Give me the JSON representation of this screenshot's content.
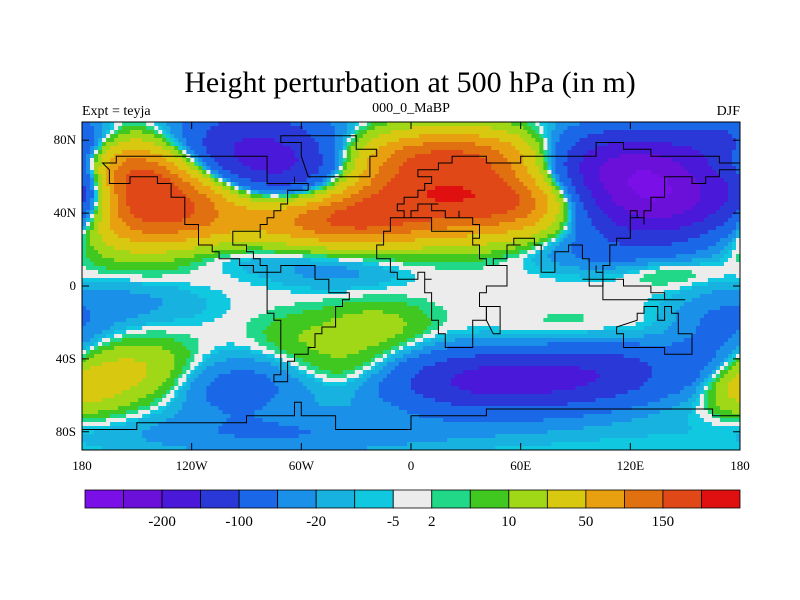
{
  "chart_data": {
    "type": "heatmap",
    "title": "Height perturbation at 500 hPa (in m)",
    "subtitle_left": "Expt = teyja",
    "subtitle_center": "000_0_MaBP",
    "subtitle_right": "DJF",
    "xlabel": "",
    "ylabel": "",
    "xlim": [
      -180,
      180
    ],
    "ylim": [
      -90,
      90
    ],
    "x_ticks": [
      {
        "value": -180,
        "label": "180"
      },
      {
        "value": -120,
        "label": "120W"
      },
      {
        "value": -60,
        "label": "60W"
      },
      {
        "value": 0,
        "label": "0"
      },
      {
        "value": 60,
        "label": "60E"
      },
      {
        "value": 120,
        "label": "120E"
      },
      {
        "value": 180,
        "label": "180"
      }
    ],
    "y_ticks": [
      {
        "value": 80,
        "label": "80N"
      },
      {
        "value": 40,
        "label": "40N"
      },
      {
        "value": 0,
        "label": "0"
      },
      {
        "value": -40,
        "label": "40S"
      },
      {
        "value": -80,
        "label": "80S"
      }
    ],
    "colorbar": {
      "colors": [
        "#7a0fe8",
        "#6a10d8",
        "#4a18d8",
        "#2a38d8",
        "#1a68e8",
        "#1a90e8",
        "#18b2e0",
        "#10c8e0",
        "#ececec",
        "#20d888",
        "#40c820",
        "#a0d818",
        "#d8c810",
        "#e8a010",
        "#e07010",
        "#e04818",
        "#e01010"
      ],
      "labels": [
        {
          "after_index": 1,
          "text": "-200"
        },
        {
          "after_index": 3,
          "text": "-100"
        },
        {
          "after_index": 5,
          "text": "-20"
        },
        {
          "after_index": 7,
          "text": "-5"
        },
        {
          "after_index": 8,
          "text": "2"
        },
        {
          "after_index": 10,
          "text": "10"
        },
        {
          "after_index": 12,
          "text": "50"
        },
        {
          "after_index": 14,
          "text": "150"
        }
      ]
    },
    "features": [
      {
        "lon": -145,
        "lat": 48,
        "amp": 240,
        "slon": 38,
        "slat": 18
      },
      {
        "lon": -165,
        "lat": 65,
        "amp": 90,
        "slon": 25,
        "slat": 12
      },
      {
        "lon": -88,
        "lat": 68,
        "amp": -170,
        "slon": 34,
        "slat": 17
      },
      {
        "lon": -50,
        "lat": 58,
        "amp": -70,
        "slon": 25,
        "slat": 12
      },
      {
        "lon": -40,
        "lat": 35,
        "amp": 100,
        "slon": 32,
        "slat": 9
      },
      {
        "lon": 0,
        "lat": 50,
        "amp": 175,
        "slon": 52,
        "slat": 14
      },
      {
        "lon": 25,
        "lat": 72,
        "amp": 120,
        "slon": 42,
        "slat": 10
      },
      {
        "lon": 60,
        "lat": 45,
        "amp": 95,
        "slon": 28,
        "slat": 12
      },
      {
        "lon": 140,
        "lat": 50,
        "amp": -260,
        "slon": 40,
        "slat": 17
      },
      {
        "lon": 108,
        "lat": 70,
        "amp": -100,
        "slon": 32,
        "slat": 12
      },
      {
        "lon": -178,
        "lat": 55,
        "amp": -110,
        "slon": 14,
        "slat": 14
      },
      {
        "lon": 172,
        "lat": 80,
        "amp": -60,
        "slon": 18,
        "slat": 9
      },
      {
        "lon": -110,
        "lat": 18,
        "amp": -25,
        "slon": 40,
        "slat": 8
      },
      {
        "lon": -40,
        "lat": 8,
        "amp": -15,
        "slon": 25,
        "slat": 7
      },
      {
        "lon": 8,
        "lat": 28,
        "amp": 9,
        "slon": 38,
        "slat": 6
      },
      {
        "lon": 140,
        "lat": 8,
        "amp": 14,
        "slon": 18,
        "slat": 6
      },
      {
        "lon": 95,
        "lat": 18,
        "amp": -15,
        "slon": 25,
        "slat": 6
      },
      {
        "lon": -20,
        "lat": -22,
        "amp": 22,
        "slon": 20,
        "slat": 9
      },
      {
        "lon": -62,
        "lat": -28,
        "amp": 12,
        "slon": 18,
        "slat": 9
      },
      {
        "lon": 100,
        "lat": -28,
        "amp": 12,
        "slon": 32,
        "slat": 9
      },
      {
        "lon": 170,
        "lat": -20,
        "amp": -25,
        "slon": 20,
        "slat": 12
      },
      {
        "lon": -150,
        "lat": -8,
        "amp": -15,
        "slon": 28,
        "slat": 10
      },
      {
        "lon": -155,
        "lat": -48,
        "amp": 50,
        "slon": 28,
        "slat": 12
      },
      {
        "lon": -100,
        "lat": -55,
        "amp": -40,
        "slon": 30,
        "slat": 12
      },
      {
        "lon": -30,
        "lat": -45,
        "amp": 25,
        "slon": 25,
        "slat": 10
      },
      {
        "lon": 50,
        "lat": -52,
        "amp": -140,
        "slon": 42,
        "slat": 11
      },
      {
        "lon": 110,
        "lat": -45,
        "amp": -55,
        "slon": 25,
        "slat": 12
      },
      {
        "lon": 165,
        "lat": -45,
        "amp": -40,
        "slon": 18,
        "slat": 12
      },
      {
        "lon": 178,
        "lat": -55,
        "amp": 45,
        "slon": 14,
        "slat": 10
      },
      {
        "lon": 20,
        "lat": -78,
        "amp": -8,
        "slon": 90,
        "slat": 8
      },
      {
        "lon": -80,
        "lat": -82,
        "amp": -20,
        "slon": 60,
        "slat": 8
      }
    ],
    "continents": [
      [
        [
          -168,
          66
        ],
        [
          -160,
          71
        ],
        [
          -140,
          70
        ],
        [
          -125,
          71
        ],
        [
          -110,
          73
        ],
        [
          -95,
          72
        ],
        [
          -85,
          70
        ],
        [
          -80,
          64
        ],
        [
          -78,
          58
        ],
        [
          -65,
          60
        ],
        [
          -62,
          56
        ],
        [
          -55,
          52
        ],
        [
          -66,
          44
        ],
        [
          -70,
          42
        ],
        [
          -76,
          38
        ],
        [
          -80,
          32
        ],
        [
          -81,
          25
        ],
        [
          -84,
          30
        ],
        [
          -90,
          29
        ],
        [
          -97,
          27
        ],
        [
          -97,
          22
        ],
        [
          -90,
          20
        ],
        [
          -88,
          16
        ],
        [
          -83,
          10
        ],
        [
          -78,
          8
        ],
        [
          -80,
          8
        ],
        [
          -85,
          12
        ],
        [
          -92,
          15
        ],
        [
          -105,
          20
        ],
        [
          -110,
          24
        ],
        [
          -115,
          30
        ],
        [
          -118,
          34
        ],
        [
          -124,
          40
        ],
        [
          -124,
          48
        ],
        [
          -130,
          55
        ],
        [
          -140,
          60
        ],
        [
          -152,
          58
        ],
        [
          -160,
          58
        ],
        [
          -165,
          62
        ]
      ],
      [
        [
          -78,
          8
        ],
        [
          -72,
          12
        ],
        [
          -62,
          10
        ],
        [
          -52,
          5
        ],
        [
          -45,
          -2
        ],
        [
          -35,
          -6
        ],
        [
          -37,
          -12
        ],
        [
          -40,
          -22
        ],
        [
          -48,
          -26
        ],
        [
          -53,
          -34
        ],
        [
          -58,
          -38
        ],
        [
          -65,
          -42
        ],
        [
          -68,
          -52
        ],
        [
          -72,
          -54
        ],
        [
          -75,
          -48
        ],
        [
          -73,
          -38
        ],
        [
          -71,
          -25
        ],
        [
          -70,
          -18
        ],
        [
          -76,
          -14
        ],
        [
          -80,
          -6
        ],
        [
          -80,
          0
        ]
      ],
      [
        [
          -55,
          60
        ],
        [
          -45,
          60
        ],
        [
          -22,
          70
        ],
        [
          -20,
          76
        ],
        [
          -30,
          82
        ],
        [
          -55,
          82
        ],
        [
          -70,
          78
        ],
        [
          -60,
          70
        ]
      ],
      [
        [
          -10,
          36
        ],
        [
          -5,
          43
        ],
        [
          -9,
          44
        ],
        [
          -2,
          48
        ],
        [
          -5,
          48
        ],
        [
          2,
          51
        ],
        [
          5,
          53
        ],
        [
          8,
          57
        ],
        [
          12,
          56
        ],
        [
          10,
          59
        ],
        [
          5,
          62
        ],
        [
          10,
          64
        ],
        [
          15,
          69
        ],
        [
          22,
          71
        ],
        [
          30,
          70
        ],
        [
          40,
          67
        ],
        [
          45,
          68
        ],
        [
          60,
          70
        ],
        [
          70,
          73
        ],
        [
          80,
          73
        ],
        [
          100,
          78
        ],
        [
          115,
          74
        ],
        [
          130,
          72
        ],
        [
          140,
          72
        ],
        [
          160,
          70
        ],
        [
          170,
          69
        ],
        [
          180,
          66
        ],
        [
          180,
          63
        ],
        [
          170,
          60
        ],
        [
          163,
          60
        ],
        [
          160,
          55
        ],
        [
          155,
          59
        ],
        [
          143,
          59
        ],
        [
          140,
          54
        ],
        [
          137,
          54
        ],
        [
          140,
          48
        ],
        [
          132,
          43
        ],
        [
          129,
          35
        ],
        [
          126,
          37
        ],
        [
          125,
          39
        ],
        [
          121,
          40
        ],
        [
          122,
          37
        ],
        [
          120,
          34
        ],
        [
          121,
          30
        ],
        [
          119,
          25
        ],
        [
          111,
          21
        ],
        [
          108,
          16
        ],
        [
          109,
          12
        ],
        [
          105,
          9
        ],
        [
          103,
          11
        ],
        [
          101,
          13
        ],
        [
          100,
          7
        ],
        [
          104,
          1
        ],
        [
          98,
          8
        ],
        [
          98,
          16
        ],
        [
          94,
          18
        ],
        [
          92,
          22
        ],
        [
          88,
          22
        ],
        [
          86,
          20
        ],
        [
          80,
          15
        ],
        [
          80,
          10
        ],
        [
          77,
          8
        ],
        [
          72,
          20
        ],
        [
          72,
          22
        ],
        [
          67,
          25
        ],
        [
          58,
          25
        ],
        [
          57,
          22
        ],
        [
          59,
          22
        ],
        [
          52,
          16
        ],
        [
          44,
          12
        ],
        [
          43,
          14
        ],
        [
          39,
          21
        ],
        [
          35,
          28
        ],
        [
          34,
          27
        ],
        [
          32,
          31
        ],
        [
          27,
          31
        ],
        [
          20,
          31
        ],
        [
          15,
          31
        ],
        [
          10,
          35
        ],
        [
          11,
          37
        ],
        [
          8,
          37
        ],
        [
          0,
          36
        ],
        [
          -6,
          36
        ],
        [
          -10,
          30
        ],
        [
          -16,
          24
        ],
        [
          -17,
          15
        ],
        [
          -12,
          8
        ],
        [
          -8,
          4
        ],
        [
          2,
          6
        ],
        [
          8,
          4
        ],
        [
          10,
          2
        ],
        [
          9,
          -2
        ],
        [
          13,
          -10
        ],
        [
          12,
          -18
        ],
        [
          15,
          -28
        ],
        [
          18,
          -34
        ],
        [
          22,
          -34
        ],
        [
          28,
          -32
        ],
        [
          33,
          -26
        ],
        [
          35,
          -22
        ],
        [
          35,
          -17
        ],
        [
          41,
          -11
        ],
        [
          39,
          -5
        ],
        [
          42,
          0
        ],
        [
          51,
          12
        ],
        [
          44,
          12
        ],
        [
          43,
          14
        ],
        [
          39,
          21
        ],
        [
          35,
          28
        ],
        [
          36,
          34
        ],
        [
          32,
          37
        ],
        [
          26,
          38
        ],
        [
          26,
          41
        ],
        [
          28,
          41
        ],
        [
          26,
          37
        ],
        [
          22,
          37
        ],
        [
          20,
          40
        ],
        [
          14,
          40
        ],
        [
          12,
          44
        ],
        [
          15,
          45
        ],
        [
          8,
          44
        ],
        [
          3,
          43
        ],
        [
          0,
          39
        ],
        [
          -2,
          37
        ]
      ],
      [
        [
          114,
          -22
        ],
        [
          114,
          -26
        ],
        [
          115,
          -34
        ],
        [
          118,
          -35
        ],
        [
          124,
          -34
        ],
        [
          130,
          -32
        ],
        [
          135,
          -35
        ],
        [
          138,
          -35
        ],
        [
          140,
          -38
        ],
        [
          146,
          -39
        ],
        [
          150,
          -37
        ],
        [
          153,
          -28
        ],
        [
          153,
          -25
        ],
        [
          145,
          -15
        ],
        [
          142,
          -11
        ],
        [
          140,
          -17
        ],
        [
          136,
          -12
        ],
        [
          132,
          -11
        ],
        [
          129,
          -15
        ],
        [
          125,
          -15
        ],
        [
          122,
          -18
        ]
      ],
      [
        [
          -180,
          -78
        ],
        [
          -150,
          -76
        ],
        [
          -120,
          -74
        ],
        [
          -90,
          -72
        ],
        [
          -65,
          -64
        ],
        [
          -60,
          -70
        ],
        [
          -40,
          -78
        ],
        [
          0,
          -70
        ],
        [
          40,
          -68
        ],
        [
          70,
          -68
        ],
        [
          100,
          -66
        ],
        [
          140,
          -66
        ],
        [
          165,
          -72
        ],
        [
          180,
          -78
        ],
        [
          180,
          -90
        ],
        [
          -180,
          -90
        ]
      ],
      [
        [
          95,
          5
        ],
        [
          105,
          -6
        ],
        [
          120,
          -9
        ],
        [
          140,
          -9
        ],
        [
          150,
          -6
        ],
        [
          140,
          -3
        ],
        [
          130,
          -1
        ],
        [
          118,
          2
        ],
        [
          110,
          4
        ],
        [
          100,
          2
        ]
      ],
      [
        [
          44,
          -25
        ],
        [
          50,
          -15
        ],
        [
          49,
          -12
        ],
        [
          43,
          -17
        ]
      ]
    ]
  }
}
